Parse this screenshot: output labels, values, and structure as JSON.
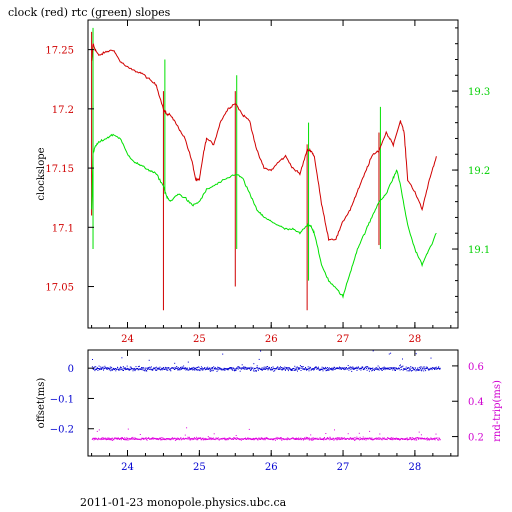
{
  "title": "clock (red) rtc (green) slopes",
  "footer": "2011-01-23 monopole.physics.ubc.ca",
  "colors": {
    "clock": "#d00000",
    "rtc": "#00e000",
    "offset": "#0000d0",
    "rtt": "#e000e0",
    "axis": "#000000",
    "left_axis_top": "#d00000",
    "right_axis_top": "#00d000",
    "bottom_x_ticks": "#0000d0",
    "right_axis_bottom": "#d000d0"
  },
  "chart_data": [
    {
      "type": "line",
      "ylabel": "clockslope",
      "xlim": [
        23.45,
        28.6
      ],
      "ylim": [
        17.015,
        17.275
      ],
      "y2lim": [
        19.0,
        19.39
      ],
      "xticks": [
        24,
        25,
        26,
        27,
        28
      ],
      "yticks": [
        17.05,
        17.1,
        17.15,
        17.2,
        17.25
      ],
      "ytick_labels": [
        "17.05",
        "17.1",
        "17.15",
        "17.2",
        "17.25"
      ],
      "y2ticks": [
        19.1,
        19.2,
        19.3
      ],
      "y2tick_labels": [
        "19.1",
        "19.2",
        "19.3"
      ],
      "series": [
        {
          "axis": "left",
          "x": [
            23.5,
            23.52,
            23.55,
            23.6,
            23.7,
            23.8,
            23.9,
            24.0,
            24.1,
            24.2,
            24.3,
            24.4,
            24.5,
            24.55,
            24.6,
            24.7,
            24.8,
            24.9,
            24.95,
            25.0,
            25.05,
            25.1,
            25.2,
            25.3,
            25.4,
            25.5,
            25.6,
            25.7,
            25.8,
            25.9,
            26.0,
            26.1,
            26.2,
            26.3,
            26.4,
            26.5,
            26.55,
            26.6,
            26.7,
            26.8,
            26.9,
            27.0,
            27.1,
            27.2,
            27.3,
            27.4,
            27.5,
            27.6,
            27.7,
            27.8,
            27.85,
            27.9,
            28.0,
            28.1,
            28.2,
            28.3
          ],
          "values": [
            17.24,
            17.255,
            17.25,
            17.245,
            17.248,
            17.25,
            17.24,
            17.235,
            17.232,
            17.23,
            17.225,
            17.22,
            17.2,
            17.195,
            17.195,
            17.185,
            17.175,
            17.155,
            17.14,
            17.14,
            17.16,
            17.175,
            17.17,
            17.19,
            17.2,
            17.205,
            17.195,
            17.19,
            17.165,
            17.15,
            17.148,
            17.155,
            17.16,
            17.15,
            17.145,
            17.165,
            17.165,
            17.16,
            17.12,
            17.09,
            17.09,
            17.105,
            17.115,
            17.13,
            17.145,
            17.16,
            17.165,
            17.18,
            17.17,
            17.19,
            17.18,
            17.14,
            17.13,
            17.115,
            17.14,
            17.16
          ]
        },
        {
          "axis": "right",
          "x": [
            23.5,
            23.52,
            23.55,
            23.6,
            23.7,
            23.8,
            23.9,
            24.0,
            24.1,
            24.2,
            24.3,
            24.4,
            24.5,
            24.55,
            24.6,
            24.7,
            24.8,
            24.9,
            25.0,
            25.1,
            25.2,
            25.3,
            25.4,
            25.5,
            25.6,
            25.7,
            25.8,
            25.9,
            26.0,
            26.1,
            26.2,
            26.3,
            26.4,
            26.5,
            26.55,
            26.6,
            26.7,
            26.8,
            26.9,
            27.0,
            27.1,
            27.2,
            27.3,
            27.4,
            27.5,
            27.6,
            27.7,
            27.75,
            27.8,
            27.9,
            28.0,
            28.1,
            28.2,
            28.3
          ],
          "values": [
            19.15,
            19.22,
            19.23,
            19.235,
            19.24,
            19.245,
            19.24,
            19.22,
            19.21,
            19.205,
            19.2,
            19.195,
            19.18,
            19.165,
            19.16,
            19.17,
            19.165,
            19.155,
            19.16,
            19.175,
            19.18,
            19.185,
            19.19,
            19.195,
            19.19,
            19.17,
            19.15,
            19.14,
            19.135,
            19.13,
            19.125,
            19.125,
            19.12,
            19.13,
            19.13,
            19.12,
            19.08,
            19.06,
            19.05,
            19.04,
            19.07,
            19.1,
            19.12,
            19.14,
            19.16,
            19.17,
            19.19,
            19.2,
            19.18,
            19.13,
            19.1,
            19.08,
            19.1,
            19.12
          ]
        }
      ],
      "spikes": [
        {
          "x": 23.5,
          "axis": "left",
          "from": 17.11,
          "to": 17.265
        },
        {
          "x": 23.52,
          "axis": "right",
          "from": 19.1,
          "to": 19.38
        },
        {
          "x": 24.5,
          "axis": "left",
          "from": 17.03,
          "to": 17.215
        },
        {
          "x": 24.52,
          "axis": "right",
          "from": 19.17,
          "to": 19.34
        },
        {
          "x": 25.5,
          "axis": "left",
          "from": 17.05,
          "to": 17.215
        },
        {
          "x": 25.52,
          "axis": "right",
          "from": 19.1,
          "to": 19.32
        },
        {
          "x": 26.5,
          "axis": "left",
          "from": 17.03,
          "to": 17.17
        },
        {
          "x": 26.52,
          "axis": "right",
          "from": 19.06,
          "to": 19.26
        },
        {
          "x": 27.5,
          "axis": "left",
          "from": 17.085,
          "to": 17.18
        },
        {
          "x": 27.52,
          "axis": "right",
          "from": 19.1,
          "to": 19.28
        }
      ]
    },
    {
      "type": "scatter",
      "ylabel": "offset(ms)",
      "y2label": "rnd-trip(ms)",
      "xlim": [
        23.45,
        28.6
      ],
      "ylim": [
        -0.29,
        0.06
      ],
      "y2lim": [
        0.09,
        0.69
      ],
      "xticks": [
        24,
        25,
        26,
        27,
        28
      ],
      "yticks": [
        0,
        -0.1,
        -0.2
      ],
      "ytick_labels": [
        "0",
        "−0.1",
        "−0.2"
      ],
      "y2ticks": [
        0.2,
        0.4,
        0.6
      ],
      "y2tick_labels": [
        "0.2",
        "0.4",
        "0.6"
      ],
      "xtick_labels": [
        "24",
        "25",
        "26",
        "27",
        "28"
      ],
      "series": [
        {
          "axis": "left",
          "x_range": [
            23.5,
            28.35
          ],
          "center": 0.0,
          "spread": 0.012,
          "count": 900
        },
        {
          "axis": "right",
          "x_range": [
            23.5,
            28.35
          ],
          "center": 0.19,
          "spread": 0.012,
          "count": 900
        }
      ]
    }
  ]
}
